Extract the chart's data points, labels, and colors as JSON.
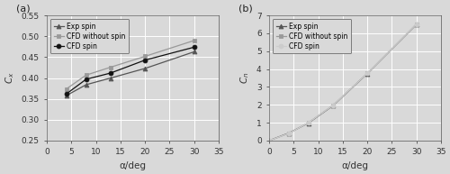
{
  "panel_a": {
    "title": "(a)",
    "xlabel": "α/deg",
    "ylabel": "C_x",
    "xlim": [
      0,
      35
    ],
    "ylim": [
      0.25,
      0.55
    ],
    "xticks": [
      0,
      5,
      10,
      15,
      20,
      25,
      30,
      35
    ],
    "yticks": [
      0.25,
      0.3,
      0.35,
      0.4,
      0.45,
      0.5,
      0.55
    ],
    "series": {
      "Exp spin": {
        "x": [
          4,
          8,
          13,
          20,
          30
        ],
        "y": [
          0.358,
          0.384,
          0.4,
          0.423,
          0.463
        ],
        "marker": "^",
        "color": "#555555",
        "linestyle": "-"
      },
      "CFD without spin": {
        "x": [
          4,
          8,
          13,
          20,
          30
        ],
        "y": [
          0.374,
          0.407,
          0.426,
          0.452,
          0.49
        ],
        "marker": "s",
        "color": "#999999",
        "linestyle": "-"
      },
      "CFD spin": {
        "x": [
          4,
          8,
          13,
          20,
          30
        ],
        "y": [
          0.362,
          0.397,
          0.412,
          0.443,
          0.474
        ],
        "marker": "o",
        "color": "#111111",
        "linestyle": "-"
      }
    }
  },
  "panel_b": {
    "title": "(b)",
    "xlabel": "α/deg",
    "ylabel": "C_n",
    "xlim": [
      0,
      35
    ],
    "ylim": [
      0,
      7
    ],
    "xticks": [
      0,
      5,
      10,
      15,
      20,
      25,
      30,
      35
    ],
    "yticks": [
      0,
      1,
      2,
      3,
      4,
      5,
      6,
      7
    ],
    "series": {
      "Exp spin": {
        "x": [
          0,
          4,
          8,
          13,
          20,
          30
        ],
        "y": [
          0.0,
          0.42,
          0.98,
          1.95,
          3.75,
          6.5
        ],
        "marker": "^",
        "color": "#555555",
        "linestyle": "-"
      },
      "CFD without spin": {
        "x": [
          0,
          4,
          8,
          13,
          20,
          30
        ],
        "y": [
          0.0,
          0.4,
          1.0,
          1.97,
          3.76,
          6.52
        ],
        "marker": "s",
        "color": "#999999",
        "linestyle": "-"
      },
      "CFD spin": {
        "x": [
          0,
          4,
          8,
          13,
          20,
          30
        ],
        "y": [
          0.0,
          0.4,
          1.0,
          1.97,
          3.76,
          6.52
        ],
        "marker": "o",
        "color": "#cccccc",
        "linestyle": "-"
      }
    }
  },
  "background_color": "#d9d9d9",
  "axes_bg_color": "#d9d9d9",
  "grid_color": "#ffffff",
  "spine_color": "#555555",
  "tick_color": "#333333",
  "legend_fontsize": 5.5,
  "tick_fontsize": 6.5,
  "label_fontsize": 7.5,
  "title_fontsize": 8,
  "linewidth": 0.9,
  "markersize": 3.5
}
